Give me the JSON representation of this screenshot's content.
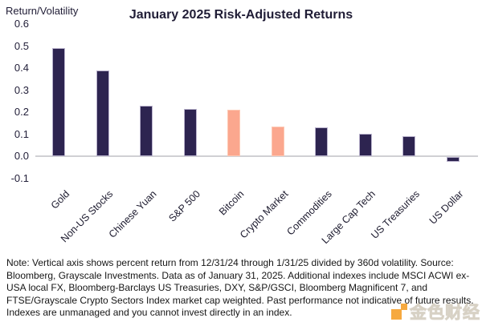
{
  "chart_data": {
    "type": "bar",
    "title": "January 2025 Risk-Adjusted Returns",
    "ylabel": "Return/Volatility",
    "xlabel": "",
    "categories": [
      "Gold",
      "Non-US Stocks",
      "Chinese Yuan",
      "S&P 500",
      "Bitcoin",
      "Crypto Market",
      "Commodities",
      "Large Cap Tech",
      "US Treasuries",
      "US Dollar"
    ],
    "values": [
      0.49,
      0.39,
      0.23,
      0.215,
      0.21,
      0.135,
      0.13,
      0.1,
      0.09,
      -0.02
    ],
    "bar_colors": [
      "navy",
      "navy",
      "navy",
      "navy",
      "salmon",
      "salmon",
      "navy",
      "navy",
      "navy",
      "navy"
    ],
    "y_ticks": [
      "0.6",
      "0.5",
      "0.4",
      "0.3",
      "0.2",
      "0.1",
      "0.0",
      "-0.1"
    ],
    "ylim": [
      -0.1,
      0.6
    ],
    "grid": false,
    "legend": "none"
  },
  "note": "Note: Vertical axis shows percent return from 12/31/24 through 1/31/25 divided by 360d volatility. Source: Bloomberg, Grayscale Investments. Data as of January  31, 2025. Additional indexes include MSCI ACWI ex-USA local FX, Bloomberg-Barclays US Treasuries, DXY, S&P/GSCI, Bloomberg Magnificent 7, and FTSE/Grayscale Crypto Sectors Index market cap weighted. Past performance not indicative of future results. Indexes are unmanaged and you cannot invest directly in an index.",
  "watermark": {
    "text": "金色财经"
  },
  "colors": {
    "navy": "#2d2450",
    "navy_edge": "#b9b2cc",
    "salmon": "#fba78e",
    "salmon_edge": "#fdc9b4",
    "zero_line": "#d0d0d4",
    "title_text": "#201d36",
    "watermark_orange": "#f59b1e"
  }
}
